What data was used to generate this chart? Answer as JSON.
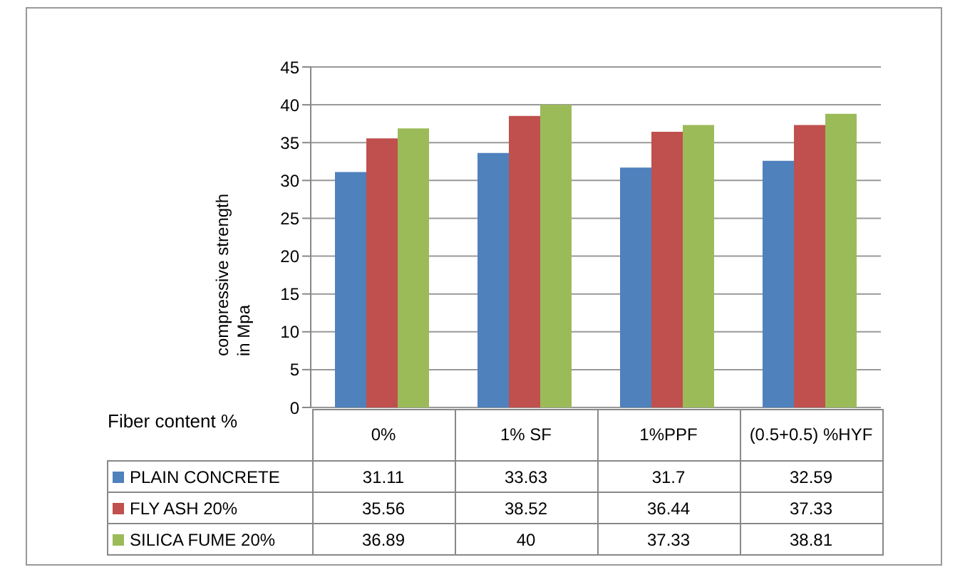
{
  "chart_data": {
    "type": "bar",
    "xlabel": "Fiber content %",
    "ylabel": "compressive strength in Mpa",
    "categories": [
      "0%",
      "1% SF",
      "1%PPF",
      "(0.5+0.5) %HYF"
    ],
    "series": [
      {
        "name": "PLAIN CONCRETE",
        "color": "#4f81bd",
        "values": [
          31.11,
          33.63,
          31.7,
          32.59
        ]
      },
      {
        "name": "FLY ASH 20%",
        "color": "#c0504d",
        "values": [
          35.56,
          38.52,
          36.44,
          37.33
        ]
      },
      {
        "name": "SILICA FUME 20%",
        "color": "#9bbb59",
        "values": [
          36.89,
          40,
          37.33,
          38.81
        ]
      }
    ],
    "ylim": [
      0,
      45
    ],
    "yticks": [
      0,
      5,
      10,
      15,
      20,
      25,
      30,
      35,
      40,
      45
    ],
    "grid": "y",
    "legend": "bottom",
    "data_labels": true
  }
}
